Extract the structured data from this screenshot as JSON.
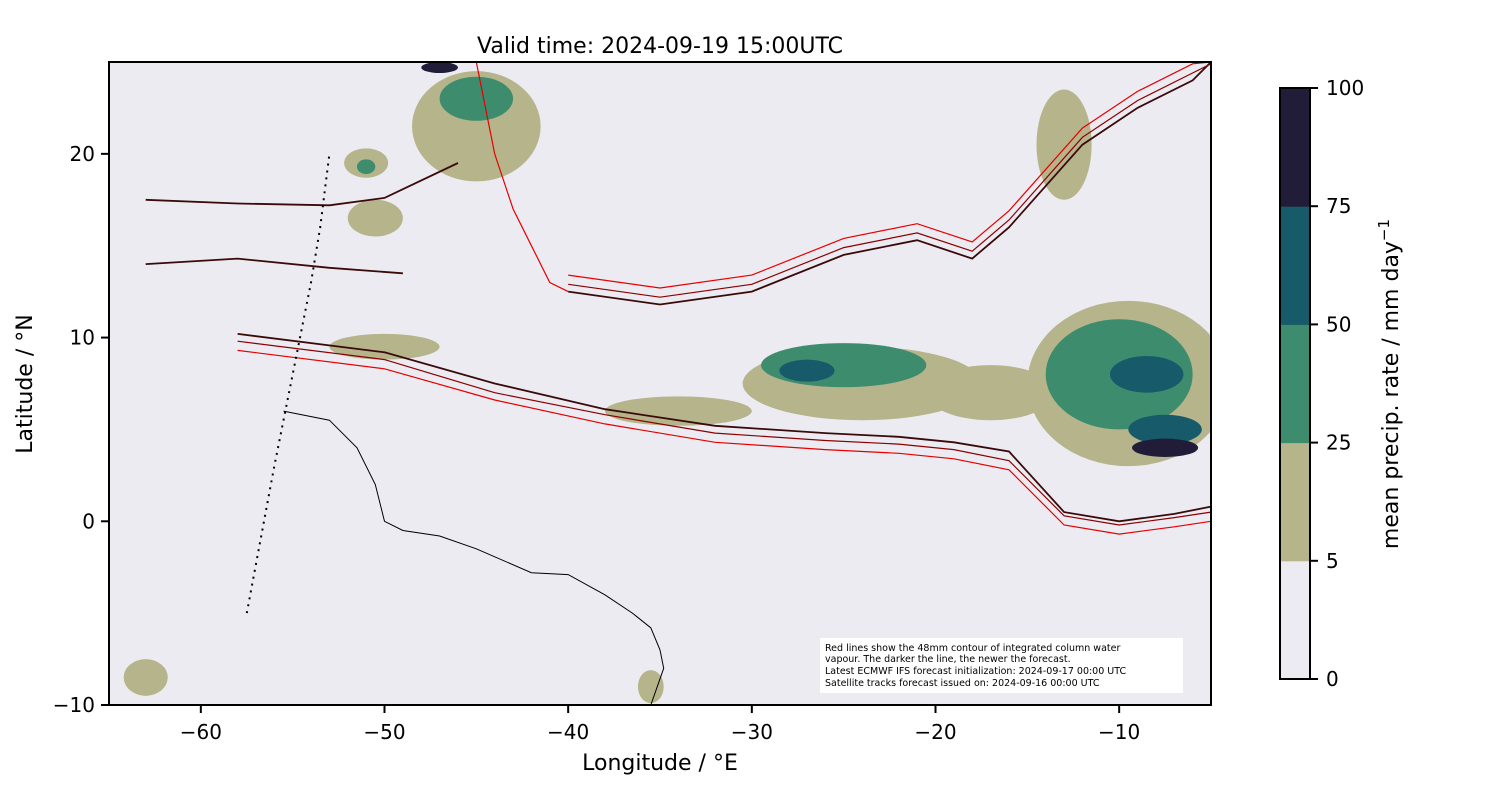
{
  "title": "Valid time: 2024-09-19 15:00UTC",
  "xlabel": "Longitude / °E",
  "ylabel": "Latitude / °N",
  "colorbar_label": "mean precip. rate / mm day",
  "colorbar_label_sup": "−1",
  "annotation_lines": [
    "Red lines show the 48mm contour of integrated column water",
    "vapour. The darker the line, the newer the forecast.",
    "Latest ECMWF IFS forecast initialization: 2024-09-17 00:00 UTC",
    "Satellite tracks forecast issued on: 2024-09-16 00:00 UTC"
  ],
  "colors": {
    "background": "#ecebf1",
    "coastline": "#000000",
    "iwv_newest": "#3a0a0a",
    "iwv_older": "#8b0000",
    "iwv_oldest": "#e60000",
    "satellite_track": "#000000"
  },
  "chart_data": {
    "type": "map",
    "title": "Valid time: 2024-09-19 15:00UTC",
    "xlabel": "Longitude / °E",
    "ylabel": "Latitude / °N",
    "xlim": [
      -65,
      -5
    ],
    "ylim": [
      -10,
      25
    ],
    "xticks": [
      -60,
      -50,
      -40,
      -30,
      -20,
      -10
    ],
    "xtick_labels": [
      "−60",
      "−50",
      "−40",
      "−30",
      "−20",
      "−10"
    ],
    "yticks": [
      -10,
      0,
      10,
      20
    ],
    "ytick_labels": [
      "−10",
      "0",
      "10",
      "20"
    ],
    "colorbar": {
      "label": "mean precip. rate / mm day⁻¹",
      "levels": [
        0,
        5,
        25,
        50,
        75,
        100
      ],
      "level_labels": [
        "0",
        "5",
        "25",
        "50",
        "75",
        "100"
      ],
      "colors": [
        "#ecebf1",
        "#b5b48b",
        "#3d8c6e",
        "#175a6a",
        "#211d38"
      ]
    },
    "precip_regions": [
      {
        "level": 1,
        "lon": -24,
        "lat": 7.5,
        "rlon": 6.5,
        "rlat": 2.0
      },
      {
        "level": 1,
        "lon": -17,
        "lat": 7.0,
        "rlon": 3.5,
        "rlat": 1.5
      },
      {
        "level": 1,
        "lon": -34,
        "lat": 6.0,
        "rlon": 4.0,
        "rlat": 0.8
      },
      {
        "level": 2,
        "lon": -25,
        "lat": 8.5,
        "rlon": 4.5,
        "rlat": 1.2
      },
      {
        "level": 3,
        "lon": -27,
        "lat": 8.2,
        "rlon": 1.5,
        "rlat": 0.6
      },
      {
        "level": 1,
        "lon": -9.5,
        "lat": 7.5,
        "rlon": 5.5,
        "rlat": 4.5
      },
      {
        "level": 2,
        "lon": -10,
        "lat": 8.0,
        "rlon": 4.0,
        "rlat": 3.0
      },
      {
        "level": 3,
        "lon": -8.5,
        "lat": 8.0,
        "rlon": 2.0,
        "rlat": 1.0
      },
      {
        "level": 3,
        "lon": -7.5,
        "lat": 5.0,
        "rlon": 2.0,
        "rlat": 0.8
      },
      {
        "level": 4,
        "lon": -7.5,
        "lat": 4.0,
        "rlon": 1.8,
        "rlat": 0.5
      },
      {
        "level": 1,
        "lon": -45,
        "lat": 21.5,
        "rlon": 3.5,
        "rlat": 3.0
      },
      {
        "level": 2,
        "lon": -45,
        "lat": 23.0,
        "rlon": 2.0,
        "rlat": 1.2
      },
      {
        "level": 4,
        "lon": -47,
        "lat": 24.7,
        "rlon": 1.0,
        "rlat": 0.3
      },
      {
        "level": 1,
        "lon": -50.5,
        "lat": 16.5,
        "rlon": 1.5,
        "rlat": 1.0
      },
      {
        "level": 1,
        "lon": -51,
        "lat": 19.5,
        "rlon": 1.2,
        "rlat": 0.8
      },
      {
        "level": 2,
        "lon": -51,
        "lat": 19.3,
        "rlon": 0.5,
        "rlat": 0.4
      },
      {
        "level": 1,
        "lon": -13,
        "lat": 20.5,
        "rlon": 1.5,
        "rlat": 3.0
      },
      {
        "level": 1,
        "lon": -50,
        "lat": 9.5,
        "rlon": 3.0,
        "rlat": 0.7
      },
      {
        "level": 1,
        "lon": -63,
        "lat": -8.5,
        "rlon": 1.2,
        "rlat": 1.0
      },
      {
        "level": 1,
        "lon": -35.5,
        "lat": -9.0,
        "rlon": 0.7,
        "rlat": 0.9
      }
    ],
    "iwv_48mm_contours": [
      {
        "age": "newest",
        "lon": [
          -58,
          -50,
          -44,
          -38,
          -32,
          -26,
          -22,
          -19,
          -16,
          -13,
          -10,
          -7,
          -5
        ],
        "lat": [
          10.2,
          9.2,
          7.5,
          6.1,
          5.2,
          4.8,
          4.6,
          4.3,
          3.8,
          0.5,
          0,
          0.4,
          0.8
        ]
      },
      {
        "age": "newest",
        "lon": [
          -40,
          -35,
          -30,
          -25,
          -21,
          -18,
          -16,
          -12,
          -9,
          -6,
          -5
        ],
        "lat": [
          12.5,
          11.8,
          12.5,
          14.5,
          15.3,
          14.3,
          16,
          20.5,
          22.5,
          24,
          25
        ]
      },
      {
        "age": "newest",
        "lon": [
          -63,
          -58,
          -53,
          -50,
          -46
        ],
        "lat": [
          17.5,
          17.3,
          17.2,
          17.6,
          19.5
        ]
      },
      {
        "age": "newest",
        "lon": [
          -63,
          -58,
          -53,
          -49
        ],
        "lat": [
          14.0,
          14.3,
          13.8,
          13.5
        ]
      },
      {
        "age": "older",
        "lon": [
          -58,
          -50,
          -44,
          -38,
          -32,
          -26,
          -22,
          -19,
          -16,
          -13,
          -10,
          -7,
          -5
        ],
        "lat": [
          9.8,
          8.8,
          7.0,
          5.8,
          4.8,
          4.4,
          4.2,
          3.9,
          3.3,
          0.3,
          -0.2,
          0.2,
          0.5
        ]
      },
      {
        "age": "older",
        "lon": [
          -40,
          -35,
          -30,
          -25,
          -21,
          -18,
          -16,
          -12,
          -9,
          -6,
          -5
        ],
        "lat": [
          12.9,
          12.2,
          12.9,
          14.9,
          15.7,
          14.7,
          16.4,
          20.9,
          22.9,
          24.4,
          24.9
        ]
      },
      {
        "age": "oldest",
        "lon": [
          -58,
          -50,
          -44,
          -38,
          -32,
          -26,
          -22,
          -19,
          -16,
          -13,
          -10,
          -7,
          -5
        ],
        "lat": [
          9.3,
          8.3,
          6.6,
          5.3,
          4.3,
          3.9,
          3.7,
          3.4,
          2.8,
          -0.2,
          -0.7,
          -0.3,
          0.0
        ]
      },
      {
        "age": "oldest",
        "lon": [
          -40,
          -35,
          -30,
          -25,
          -21,
          -18,
          -16,
          -12,
          -9,
          -6,
          -5
        ],
        "lat": [
          13.4,
          12.7,
          13.4,
          15.4,
          16.2,
          15.2,
          16.9,
          21.4,
          23.4,
          24.9,
          25.0
        ]
      },
      {
        "age": "oldest",
        "lon": [
          -45,
          -44,
          -43,
          -42,
          -41,
          -40
        ],
        "lat": [
          25,
          20,
          17,
          15,
          13,
          12.5
        ]
      }
    ],
    "satellite_track": {
      "lon": [
        -57.5,
        -56,
        -55,
        -54,
        -53.5,
        -53
      ],
      "lat": [
        -5,
        3,
        8,
        13,
        16,
        20
      ]
    },
    "coastline": {
      "lon": [
        -55.5,
        -53,
        -51.5,
        -50.5,
        -50,
        -49,
        -47,
        -45,
        -42,
        -40,
        -38,
        -36.5,
        -35.5,
        -35,
        -34.8,
        -35.5
      ],
      "lat": [
        6.0,
        5.5,
        4.0,
        2.0,
        0.0,
        -0.5,
        -0.8,
        -1.5,
        -2.8,
        -2.9,
        -4.0,
        -5.0,
        -5.8,
        -7.0,
        -8.0,
        -10.0
      ]
    }
  }
}
